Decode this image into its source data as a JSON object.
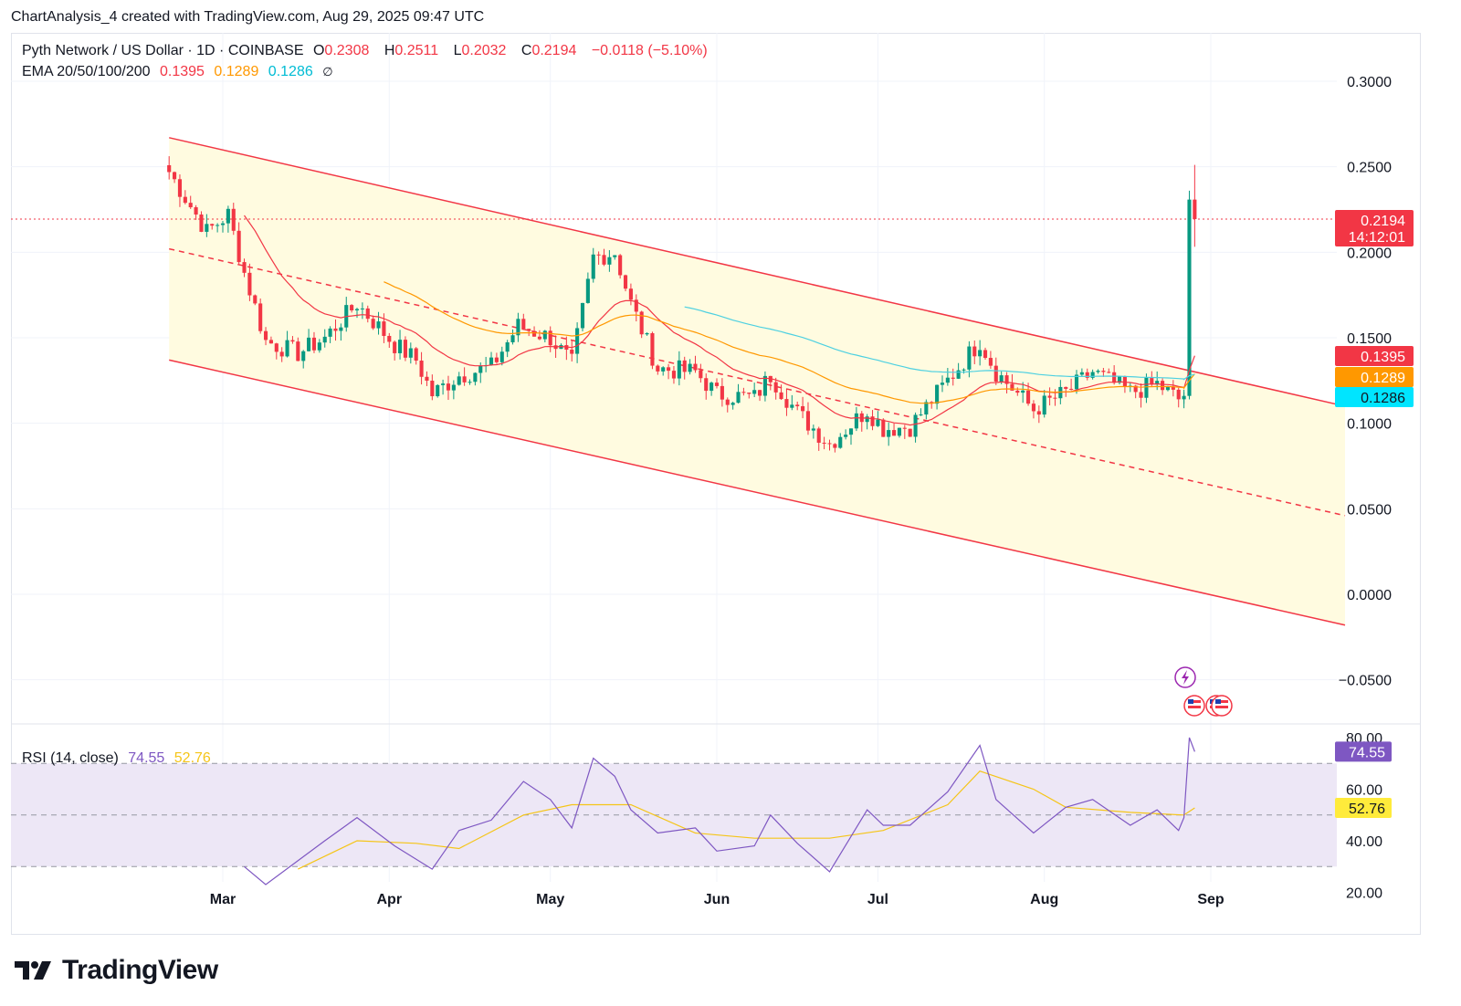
{
  "caption": "ChartAnalysis_4 created with TradingView.com, Aug 29, 2025 09:47 UTC",
  "logo_text": "TradingView",
  "legend": {
    "symbol": "Pyth Network / US Dollar · 1D · COINBASE",
    "o_label": "O",
    "o": "0.2308",
    "h_label": "H",
    "h": "0.2511",
    "l_label": "L",
    "l": "0.2032",
    "c_label": "C",
    "c": "0.2194",
    "change": "−0.0118 (−5.10%)",
    "ema_label": "EMA 20/50/100/200",
    "ema20": "0.1395",
    "ema50": "0.1289",
    "ema100": "0.1286",
    "ema_icon": "∅"
  },
  "rsi_legend": {
    "label": "RSI (14, close)",
    "rsi": "74.55",
    "ma": "52.76"
  },
  "price_badges": {
    "last": "0.2194",
    "countdown": "14:12:01",
    "ema20": "0.1395",
    "ema50": "0.1289",
    "ema100": "0.1286"
  },
  "rsi_badges": {
    "rsi": "74.55",
    "ma": "52.76"
  },
  "colors": {
    "up": "#089981",
    "down": "#f23645",
    "channel": "#f23645",
    "channel_fill": "#fffbe0",
    "ema20": "#f23645",
    "ema50": "#ff9800",
    "ema100": "#4dd0e1",
    "rsi": "#7e57c2",
    "rsi_ma": "#f5c518",
    "rsi_band": "#ede7f6"
  },
  "icons": [
    "lightning-event-icon",
    "us-flag-icon"
  ],
  "chart_data": [
    {
      "type": "candlestick",
      "title": "Pyth Network / US Dollar · 1D · COINBASE",
      "y_axis": {
        "ticks": [
          "0.3000",
          "0.2500",
          "0.2000",
          "0.1500",
          "0.1000",
          "0.0500",
          "0.0000",
          "−0.0500"
        ],
        "range": [
          -0.07,
          0.33
        ]
      },
      "x_axis": {
        "ticks": [
          "Mar",
          "Apr",
          "May",
          "Jun",
          "Jul",
          "Aug",
          "Sep"
        ]
      },
      "anchors": [
        {
          "date": "2025-02-19",
          "price": 0.247
        },
        {
          "date": "2025-02-26",
          "price": 0.212
        },
        {
          "date": "2025-03-02",
          "price": 0.222
        },
        {
          "date": "2025-03-05",
          "price": 0.188
        },
        {
          "date": "2025-03-09",
          "price": 0.148
        },
        {
          "date": "2025-03-15",
          "price": 0.141
        },
        {
          "date": "2025-03-20",
          "price": 0.15
        },
        {
          "date": "2025-03-26",
          "price": 0.17
        },
        {
          "date": "2025-04-02",
          "price": 0.146
        },
        {
          "date": "2025-04-06",
          "price": 0.137
        },
        {
          "date": "2025-04-09",
          "price": 0.117
        },
        {
          "date": "2025-04-14",
          "price": 0.128
        },
        {
          "date": "2025-04-20",
          "price": 0.133
        },
        {
          "date": "2025-04-25",
          "price": 0.157
        },
        {
          "date": "2025-05-01",
          "price": 0.15
        },
        {
          "date": "2025-05-05",
          "price": 0.135
        },
        {
          "date": "2025-05-09",
          "price": 0.197
        },
        {
          "date": "2025-05-13",
          "price": 0.2
        },
        {
          "date": "2025-05-16",
          "price": 0.17
        },
        {
          "date": "2025-05-21",
          "price": 0.132
        },
        {
          "date": "2025-05-28",
          "price": 0.13
        },
        {
          "date": "2025-06-01",
          "price": 0.117
        },
        {
          "date": "2025-06-08",
          "price": 0.115
        },
        {
          "date": "2025-06-11",
          "price": 0.128
        },
        {
          "date": "2025-06-16",
          "price": 0.106
        },
        {
          "date": "2025-06-22",
          "price": 0.088
        },
        {
          "date": "2025-06-29",
          "price": 0.108
        },
        {
          "date": "2025-07-02",
          "price": 0.097
        },
        {
          "date": "2025-07-07",
          "price": 0.098
        },
        {
          "date": "2025-07-14",
          "price": 0.125
        },
        {
          "date": "2025-07-20",
          "price": 0.148
        },
        {
          "date": "2025-07-23",
          "price": 0.13
        },
        {
          "date": "2025-07-30",
          "price": 0.108
        },
        {
          "date": "2025-08-05",
          "price": 0.118
        },
        {
          "date": "2025-08-10",
          "price": 0.13
        },
        {
          "date": "2025-08-17",
          "price": 0.118
        },
        {
          "date": "2025-08-22",
          "price": 0.123
        },
        {
          "date": "2025-08-26",
          "price": 0.114
        },
        {
          "date": "2025-08-27",
          "price": 0.116
        },
        {
          "date": "2025-08-28",
          "price": 0.2308
        },
        {
          "date": "2025-08-29",
          "price": 0.2194
        }
      ],
      "last_candle": {
        "date": "2025-08-29",
        "open": 0.2308,
        "high": 0.2511,
        "low": 0.2032,
        "close": 0.2194
      },
      "ema": [
        {
          "period": 20,
          "value": 0.1395
        },
        {
          "period": 50,
          "value": 0.1289
        },
        {
          "period": 100,
          "value": 0.1286
        }
      ],
      "channel": {
        "upper": [
          {
            "date": "2025-02-19",
            "price": 0.267
          },
          {
            "date": "2025-09-26",
            "price": 0.11
          }
        ],
        "lower": [
          {
            "date": "2025-02-19",
            "price": 0.137
          },
          {
            "date": "2025-09-26",
            "price": -0.018
          }
        ],
        "mid": [
          {
            "date": "2025-02-19",
            "price": 0.202
          },
          {
            "date": "2025-09-26",
            "price": 0.046
          }
        ]
      }
    },
    {
      "type": "line",
      "title": "RSI (14, close)",
      "y_axis": {
        "ticks": [
          "80.00",
          "60.00",
          "40.00",
          "20.00"
        ],
        "range": [
          15,
          82
        ],
        "bands": [
          30,
          50,
          70
        ]
      },
      "series": [
        {
          "name": "RSI",
          "last": 74.55,
          "points": [
            [
              "2025-03-05",
              30
            ],
            [
              "2025-03-09",
              23
            ],
            [
              "2025-03-20",
              40
            ],
            [
              "2025-03-26",
              49
            ],
            [
              "2025-04-02",
              38
            ],
            [
              "2025-04-09",
              29
            ],
            [
              "2025-04-14",
              44
            ],
            [
              "2025-04-20",
              48
            ],
            [
              "2025-04-26",
              63
            ],
            [
              "2025-05-01",
              56
            ],
            [
              "2025-05-05",
              45
            ],
            [
              "2025-05-09",
              72
            ],
            [
              "2025-05-13",
              65
            ],
            [
              "2025-05-16",
              52
            ],
            [
              "2025-05-21",
              43
            ],
            [
              "2025-05-28",
              45
            ],
            [
              "2025-06-01",
              36
            ],
            [
              "2025-06-08",
              38
            ],
            [
              "2025-06-11",
              50
            ],
            [
              "2025-06-16",
              39
            ],
            [
              "2025-06-22",
              28
            ],
            [
              "2025-06-29",
              52
            ],
            [
              "2025-07-02",
              46
            ],
            [
              "2025-07-07",
              46
            ],
            [
              "2025-07-14",
              59
            ],
            [
              "2025-07-20",
              77
            ],
            [
              "2025-07-23",
              56
            ],
            [
              "2025-07-30",
              43
            ],
            [
              "2025-08-05",
              53
            ],
            [
              "2025-08-10",
              56
            ],
            [
              "2025-08-17",
              46
            ],
            [
              "2025-08-22",
              52
            ],
            [
              "2025-08-26",
              44
            ],
            [
              "2025-08-27",
              49
            ],
            [
              "2025-08-28",
              80
            ],
            [
              "2025-08-29",
              74.55
            ]
          ]
        },
        {
          "name": "RSI-based MA",
          "last": 52.76,
          "points": [
            [
              "2025-03-15",
              29
            ],
            [
              "2025-03-26",
              40
            ],
            [
              "2025-04-06",
              39
            ],
            [
              "2025-04-14",
              37
            ],
            [
              "2025-04-26",
              50
            ],
            [
              "2025-05-05",
              54
            ],
            [
              "2025-05-16",
              54
            ],
            [
              "2025-05-28",
              43
            ],
            [
              "2025-06-08",
              41
            ],
            [
              "2025-06-22",
              41
            ],
            [
              "2025-07-02",
              44
            ],
            [
              "2025-07-14",
              54
            ],
            [
              "2025-07-20",
              67
            ],
            [
              "2025-07-30",
              60
            ],
            [
              "2025-08-05",
              53
            ],
            [
              "2025-08-17",
              51
            ],
            [
              "2025-08-27",
              50
            ],
            [
              "2025-08-29",
              52.76
            ]
          ]
        }
      ]
    }
  ]
}
